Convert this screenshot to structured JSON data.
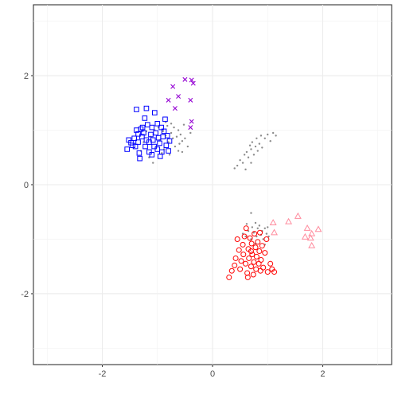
{
  "chart_data": {
    "type": "scatter",
    "title": "",
    "xlabel": "",
    "ylabel": "",
    "xlim": [
      -3.25,
      3.25
    ],
    "ylim": [
      -3.3,
      3.3
    ],
    "x_ticks": [
      -2,
      0,
      2
    ],
    "y_ticks": [
      -2,
      0,
      2
    ],
    "x_tick_labels": [
      "-2",
      "0",
      "2"
    ],
    "y_tick_labels": [
      "-2",
      "0",
      "2"
    ],
    "grid": true,
    "legend": "none",
    "series": [
      {
        "marker": "square",
        "color": "#0000FF",
        "points": [
          [
            -1.55,
            0.65
          ],
          [
            -1.52,
            0.82
          ],
          [
            -1.48,
            0.77
          ],
          [
            -1.45,
            0.72
          ],
          [
            -1.42,
            0.85
          ],
          [
            -1.4,
            0.7
          ],
          [
            -1.38,
            1.0
          ],
          [
            -1.38,
            1.38
          ],
          [
            -1.35,
            0.78
          ],
          [
            -1.35,
            0.93
          ],
          [
            -1.33,
            0.58
          ],
          [
            -1.32,
            0.48
          ],
          [
            -1.3,
            1.02
          ],
          [
            -1.28,
            0.88
          ],
          [
            -1.27,
            1.05
          ],
          [
            -1.25,
            0.95
          ],
          [
            -1.23,
            1.22
          ],
          [
            -1.22,
            0.7
          ],
          [
            -1.2,
            1.4
          ],
          [
            -1.2,
            0.82
          ],
          [
            -1.18,
            1.1
          ],
          [
            -1.15,
            0.78
          ],
          [
            -1.15,
            0.6
          ],
          [
            -1.12,
            0.92
          ],
          [
            -1.1,
            1.05
          ],
          [
            -1.1,
            0.55
          ],
          [
            -1.08,
            0.82
          ],
          [
            -1.06,
            0.7
          ],
          [
            -1.05,
            1.32
          ],
          [
            -1.03,
            0.95
          ],
          [
            -1.0,
            0.65
          ],
          [
            -1.0,
            1.12
          ],
          [
            -0.98,
            0.86
          ],
          [
            -0.96,
            0.76
          ],
          [
            -0.95,
            0.52
          ],
          [
            -0.93,
            1.05
          ],
          [
            -0.92,
            0.6
          ],
          [
            -0.9,
            0.88
          ],
          [
            -0.88,
            0.98
          ],
          [
            -0.86,
            1.2
          ],
          [
            -0.84,
            0.72
          ],
          [
            -0.82,
            0.9
          ],
          [
            -0.8,
            0.62
          ],
          [
            -0.78,
            0.8
          ]
        ]
      },
      {
        "marker": "x",
        "color": "#9400D3",
        "points": [
          [
            -0.5,
            1.93
          ],
          [
            -0.38,
            1.92
          ],
          [
            -0.35,
            1.86
          ],
          [
            -0.72,
            1.8
          ],
          [
            -0.62,
            1.62
          ],
          [
            -0.8,
            1.55
          ],
          [
            -0.4,
            1.55
          ],
          [
            -0.68,
            1.4
          ],
          [
            -0.38,
            1.16
          ],
          [
            -0.4,
            1.05
          ]
        ]
      },
      {
        "marker": "circle",
        "color": "#FF0000",
        "points": [
          [
            0.3,
            -1.7
          ],
          [
            0.35,
            -1.58
          ],
          [
            0.4,
            -1.48
          ],
          [
            0.42,
            -1.35
          ],
          [
            0.45,
            -1.0
          ],
          [
            0.48,
            -1.2
          ],
          [
            0.5,
            -1.55
          ],
          [
            0.52,
            -1.4
          ],
          [
            0.55,
            -1.1
          ],
          [
            0.56,
            -1.28
          ],
          [
            0.58,
            -0.95
          ],
          [
            0.6,
            -1.45
          ],
          [
            0.61,
            -0.8
          ],
          [
            0.63,
            -1.62
          ],
          [
            0.65,
            -1.18
          ],
          [
            0.66,
            -1.35
          ],
          [
            0.68,
            -0.98
          ],
          [
            0.7,
            -1.5
          ],
          [
            0.71,
            -1.08
          ],
          [
            0.72,
            -1.28
          ],
          [
            0.74,
            -1.65
          ],
          [
            0.75,
            -1.42
          ],
          [
            0.76,
            -0.9
          ],
          [
            0.78,
            -1.15
          ],
          [
            0.79,
            -1.55
          ],
          [
            0.8,
            -1.32
          ],
          [
            0.82,
            -1.05
          ],
          [
            0.84,
            -1.45
          ],
          [
            0.85,
            -1.22
          ],
          [
            0.86,
            -0.88
          ],
          [
            0.88,
            -1.38
          ],
          [
            0.9,
            -1.12
          ],
          [
            0.92,
            -1.52
          ],
          [
            0.95,
            -1.25
          ],
          [
            0.98,
            -1.0
          ],
          [
            1.0,
            -1.6
          ],
          [
            1.05,
            -1.45
          ],
          [
            1.08,
            -1.55
          ],
          [
            1.12,
            -1.6
          ],
          [
            0.64,
            -1.7
          ],
          [
            0.7,
            -1.22
          ],
          [
            0.87,
            -1.58
          ]
        ]
      },
      {
        "marker": "triangle",
        "color": "#FF8C9E",
        "points": [
          [
            1.1,
            -0.7
          ],
          [
            1.12,
            -0.88
          ],
          [
            1.38,
            -0.68
          ],
          [
            1.55,
            -0.58
          ],
          [
            1.72,
            -0.8
          ],
          [
            1.8,
            -0.9
          ],
          [
            1.78,
            -0.98
          ],
          [
            1.92,
            -0.82
          ],
          [
            1.68,
            -0.96
          ],
          [
            1.8,
            -1.12
          ]
        ]
      },
      {
        "marker": "dot",
        "color": "#8C8C8C",
        "points": [
          [
            -1.3,
            0.62
          ],
          [
            -1.25,
            0.78
          ],
          [
            -1.2,
            0.98
          ],
          [
            -1.15,
            0.5
          ],
          [
            -1.12,
            0.88
          ],
          [
            -1.08,
            0.4
          ],
          [
            -1.05,
            1.0
          ],
          [
            -1.02,
            0.7
          ],
          [
            -0.98,
            1.05
          ],
          [
            -0.95,
            0.82
          ],
          [
            -0.92,
            0.58
          ],
          [
            -0.9,
            0.98
          ],
          [
            -0.88,
            0.65
          ],
          [
            -0.85,
            0.9
          ],
          [
            -0.82,
            1.08
          ],
          [
            -0.8,
            0.78
          ],
          [
            -0.78,
            0.55
          ],
          [
            -0.75,
            0.95
          ],
          [
            -0.72,
            0.85
          ],
          [
            -0.7,
            1.05
          ],
          [
            -0.68,
            0.7
          ],
          [
            -0.65,
            0.88
          ],
          [
            -0.62,
            1.0
          ],
          [
            -0.6,
            0.75
          ],
          [
            -0.58,
            0.92
          ],
          [
            -0.55,
            0.8
          ],
          [
            -0.52,
            1.1
          ],
          [
            -0.5,
            0.85
          ],
          [
            -0.45,
            0.7
          ],
          [
            -0.4,
            0.95
          ],
          [
            -0.55,
            0.6
          ],
          [
            -0.62,
            0.62
          ],
          [
            -0.75,
            1.12
          ],
          [
            -0.85,
            1.15
          ],
          [
            0.4,
            0.3
          ],
          [
            0.45,
            0.35
          ],
          [
            0.5,
            0.45
          ],
          [
            0.55,
            0.4
          ],
          [
            0.58,
            0.55
          ],
          [
            0.62,
            0.6
          ],
          [
            0.65,
            0.5
          ],
          [
            0.68,
            0.72
          ],
          [
            0.7,
            0.65
          ],
          [
            0.72,
            0.78
          ],
          [
            0.75,
            0.55
          ],
          [
            0.78,
            0.7
          ],
          [
            0.8,
            0.85
          ],
          [
            0.82,
            0.62
          ],
          [
            0.85,
            0.75
          ],
          [
            0.88,
            0.9
          ],
          [
            0.9,
            0.68
          ],
          [
            0.95,
            0.85
          ],
          [
            1.0,
            0.92
          ],
          [
            1.05,
            0.8
          ],
          [
            1.1,
            0.95
          ],
          [
            1.15,
            0.9
          ],
          [
            0.6,
            0.28
          ],
          [
            0.7,
            0.4
          ],
          [
            0.55,
            -0.9
          ],
          [
            0.6,
            -0.95
          ],
          [
            0.65,
            -0.85
          ],
          [
            0.7,
            -1.0
          ],
          [
            0.72,
            -0.78
          ],
          [
            0.75,
            -0.88
          ],
          [
            0.78,
            -0.7
          ],
          [
            0.8,
            -0.95
          ],
          [
            0.82,
            -0.8
          ],
          [
            0.85,
            -0.75
          ],
          [
            0.88,
            -0.92
          ],
          [
            0.9,
            -0.85
          ],
          [
            0.92,
            -1.0
          ],
          [
            0.95,
            -0.8
          ],
          [
            0.98,
            -0.9
          ],
          [
            1.0,
            -0.78
          ],
          [
            1.02,
            -0.95
          ],
          [
            0.7,
            -0.52
          ],
          [
            0.78,
            -1.08
          ],
          [
            0.62,
            -0.72
          ],
          [
            0.95,
            -1.1
          ]
        ]
      }
    ]
  }
}
